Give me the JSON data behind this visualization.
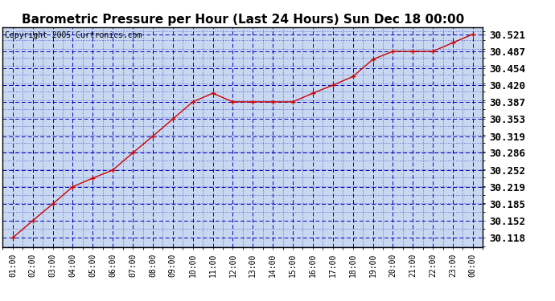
{
  "title": "Barometric Pressure per Hour (Last 24 Hours) Sun Dec 18 00:00",
  "copyright": "Copyright 2005 Curtronics.com",
  "hours": [
    "01:00",
    "02:00",
    "03:00",
    "04:00",
    "05:00",
    "06:00",
    "07:00",
    "08:00",
    "09:00",
    "10:00",
    "11:00",
    "12:00",
    "13:00",
    "14:00",
    "15:00",
    "16:00",
    "17:00",
    "18:00",
    "19:00",
    "20:00",
    "21:00",
    "22:00",
    "23:00",
    "00:00"
  ],
  "values": [
    30.118,
    30.152,
    30.185,
    30.219,
    30.236,
    30.252,
    30.286,
    30.319,
    30.353,
    30.387,
    30.404,
    30.387,
    30.387,
    30.387,
    30.387,
    30.404,
    30.42,
    30.437,
    30.471,
    30.487,
    30.487,
    30.487,
    30.504,
    30.521
  ],
  "yticks": [
    30.118,
    30.152,
    30.185,
    30.219,
    30.252,
    30.286,
    30.319,
    30.353,
    30.387,
    30.42,
    30.454,
    30.487,
    30.521
  ],
  "ymin": 30.1,
  "ymax": 30.535,
  "line_color": "#cc0000",
  "marker_color": "#cc0000",
  "bg_color": "#c8d8f0",
  "outer_bg": "#ffffff",
  "grid_color": "#0000bb",
  "title_fontsize": 11,
  "copyright_fontsize": 7,
  "ytick_fontsize": 9,
  "xtick_fontsize": 7
}
